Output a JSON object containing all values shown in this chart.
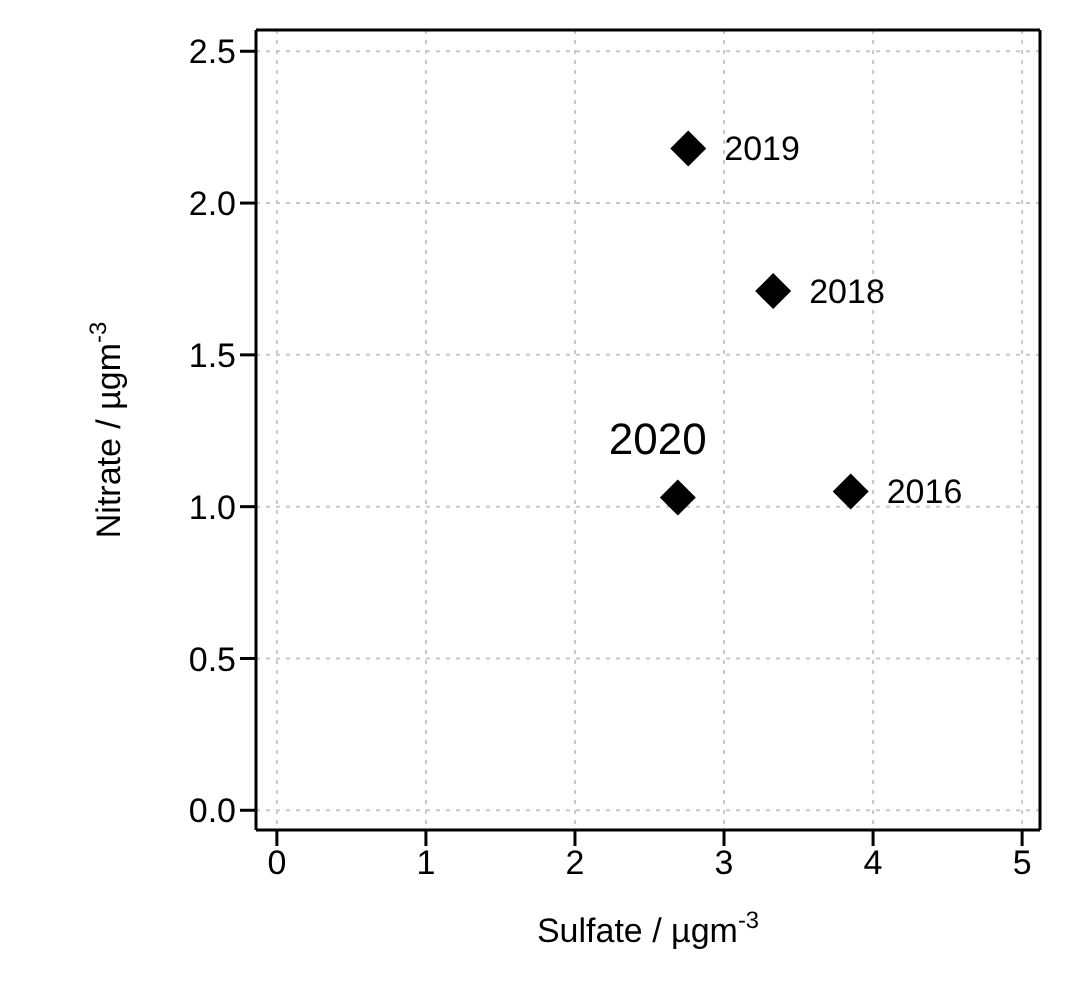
{
  "chart_data": {
    "type": "scatter",
    "xlabel": "Sulfate / µgm$^{-3}$",
    "ylabel": "Nitrate / µgm$^{-3}$",
    "x": [
      2.76,
      3.33,
      2.69,
      3.85
    ],
    "values": [
      2.18,
      1.71,
      1.03,
      1.05
    ],
    "color": "#000000",
    "marker": "diamond",
    "xlim": [
      -0.14,
      5.12
    ],
    "xticks": [
      0,
      1,
      2,
      3,
      4,
      5
    ],
    "ylim": [
      -0.065,
      2.57
    ],
    "yticks": [
      {
        "value": 0,
        "label": "0.0"
      },
      0.5,
      {
        "value": 1,
        "label": "1.0"
      },
      1.5,
      {
        "value": 2,
        "label": "2.0"
      },
      2.5
    ],
    "grid": true,
    "legend": false,
    "annotations": [
      {
        "text": "2019",
        "x": 2.76,
        "y": 2.18
      },
      {
        "text": "2018",
        "x": 3.33,
        "y": 1.71
      },
      {
        "text": "2020",
        "x": 2.69,
        "y": 1.03
      },
      {
        "text": "2016",
        "x": 3.85,
        "y": 1.05
      }
    ]
  }
}
